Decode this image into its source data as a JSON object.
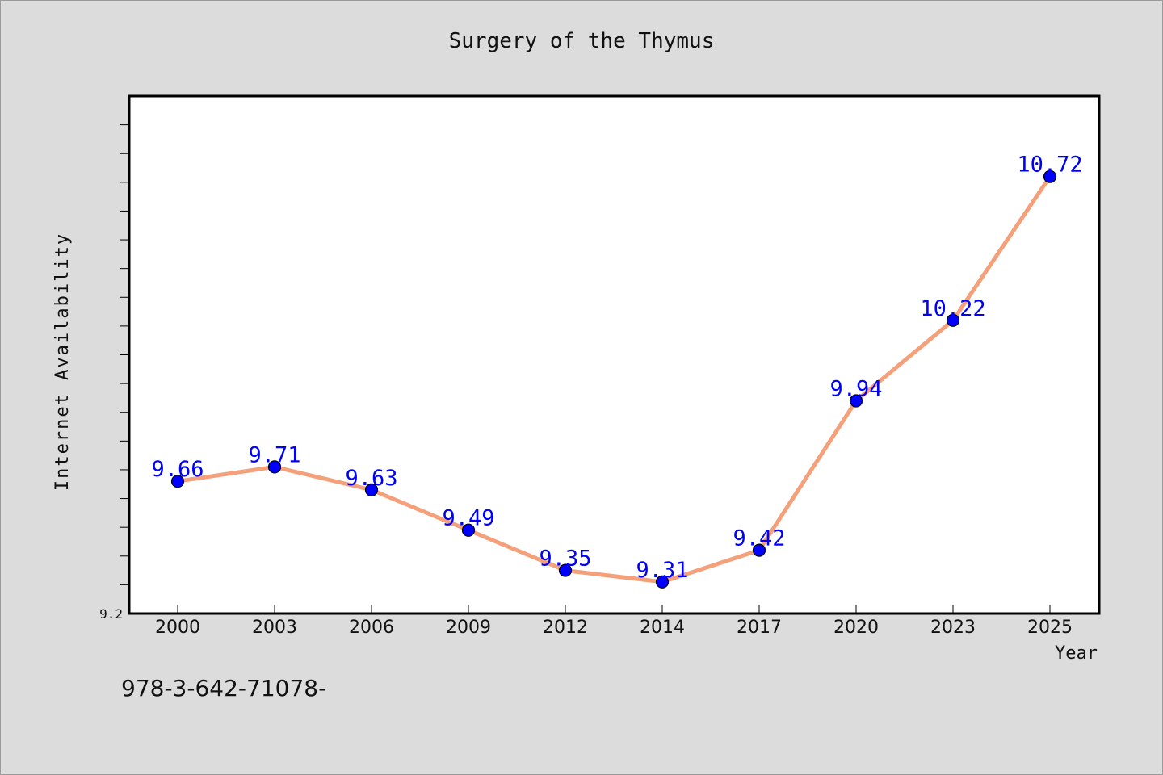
{
  "chart_data": {
    "type": "line",
    "title": "Surgery of the Thymus",
    "xlabel": "Year",
    "ylabel": "Internet Availability",
    "categories": [
      "2000",
      "2003",
      "2006",
      "2009",
      "2012",
      "2014",
      "2017",
      "2020",
      "2023",
      "2025"
    ],
    "series": [
      {
        "values": [
          9.66,
          9.71,
          9.63,
          9.49,
          9.35,
          9.31,
          9.42,
          9.94,
          10.22,
          10.72
        ]
      }
    ],
    "data_labels": [
      "9.66",
      "9.71",
      "9.63",
      "9.49",
      "9.35",
      "9.31",
      "9.42",
      "9.94",
      "10.22",
      "10.72"
    ],
    "ylim": [
      9.2,
      11.0
    ],
    "y_tick_labels": [
      "9.2"
    ],
    "grid": false,
    "line_color": "#f4a07a",
    "marker_color": "#0000ff",
    "label_color": "#0000ff"
  },
  "footer": {
    "caption": "978-3-642-71078-"
  }
}
